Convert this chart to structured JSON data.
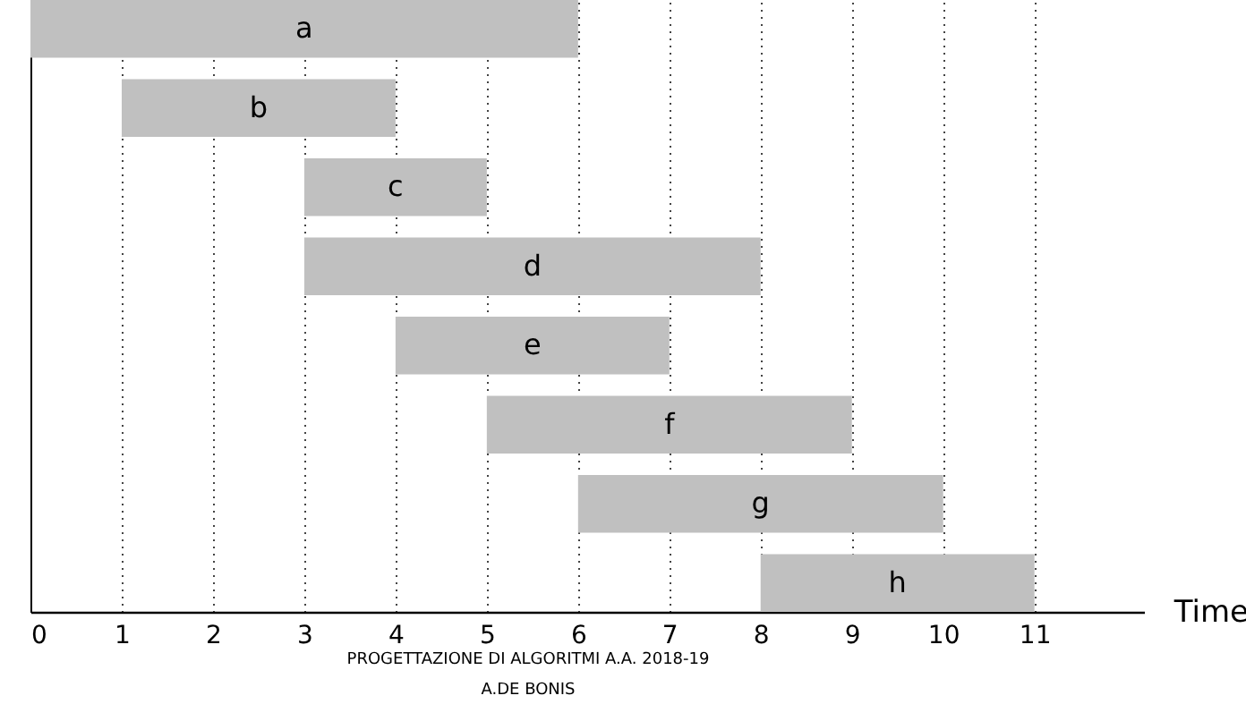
{
  "chart_data": {
    "type": "bar",
    "orientation": "horizontal",
    "categories": [
      "a",
      "b",
      "c",
      "d",
      "e",
      "f",
      "g",
      "h"
    ],
    "base": [
      0,
      1,
      3,
      3,
      4,
      5,
      6,
      8
    ],
    "values": [
      6,
      3,
      2,
      5,
      3,
      4,
      4,
      3
    ],
    "color": "#c0c0c0",
    "xlim": [
      0,
      12.2
    ],
    "xticks": [
      0,
      1,
      2,
      3,
      4,
      5,
      6,
      7,
      8,
      9,
      10,
      11
    ],
    "xlabel": "Time",
    "grid": "x",
    "line_style": "dotted",
    "tick_labels": "x",
    "annotations": [
      "PROGETTAZIONE DI ALGORITMI  A.A. 2018-19",
      "A.DE BONIS"
    ]
  }
}
